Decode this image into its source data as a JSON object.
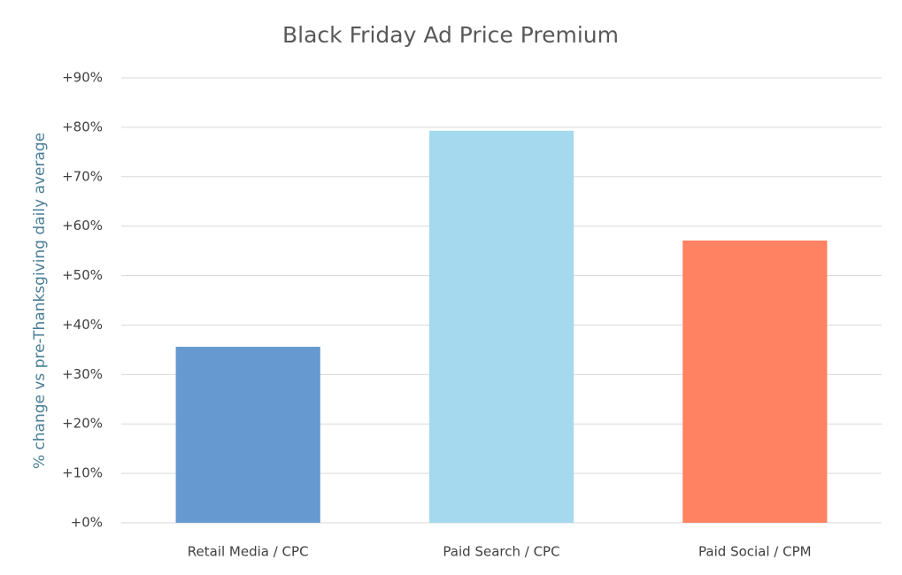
{
  "chart_data": {
    "type": "bar",
    "title": "Black Friday Ad Price Premium",
    "y_label": "% change vs pre-Thanksgiving daily average",
    "categories": [
      "Retail Media / CPC",
      "Paid Search / CPC",
      "Paid Social / CPM"
    ],
    "values": [
      35.6,
      79.3,
      57.1
    ],
    "colors": [
      "#6699cf",
      "#a4d9ee",
      "#ff8262"
    ],
    "ylim": [
      0,
      90
    ],
    "yticks": [
      {
        "value": 0,
        "label": "+0%"
      },
      {
        "value": 10,
        "label": "+10%"
      },
      {
        "value": 20,
        "label": "+20%"
      },
      {
        "value": 30,
        "label": "+30%"
      },
      {
        "value": 40,
        "label": "+40%"
      },
      {
        "value": 50,
        "label": "+50%"
      },
      {
        "value": 60,
        "label": "+60%"
      },
      {
        "value": 70,
        "label": "+70%"
      },
      {
        "value": 80,
        "label": "+80%"
      },
      {
        "value": 90,
        "label": "+90%"
      }
    ],
    "grid": true
  }
}
